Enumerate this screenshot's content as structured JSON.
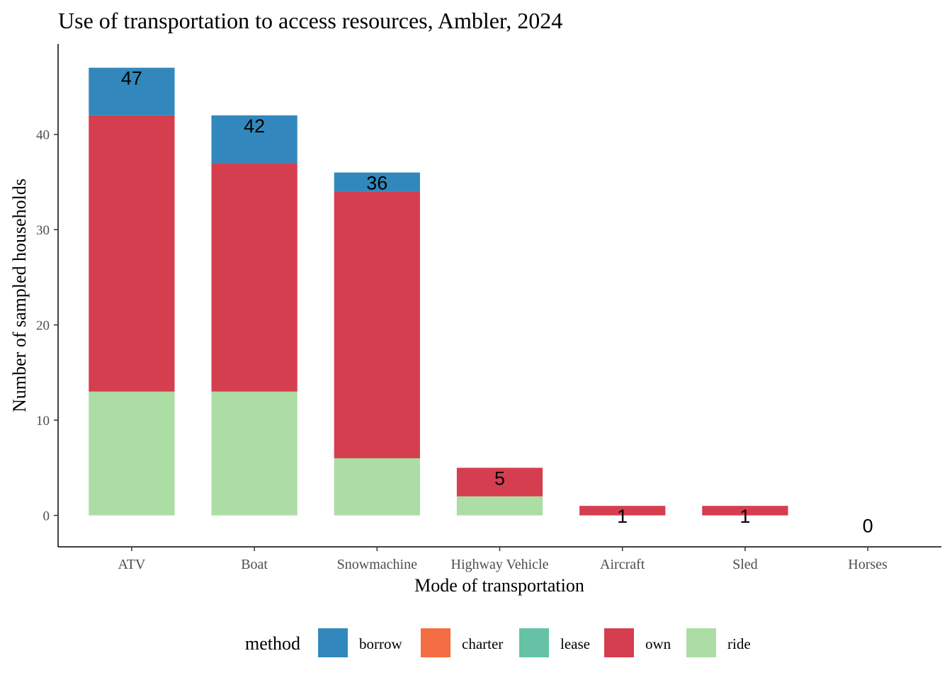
{
  "chart_data": {
    "type": "bar",
    "stacked": true,
    "title": "Use of transportation to access resources, Ambler, 2024",
    "xlabel": "Mode of transportation",
    "ylabel": "Number of sampled households",
    "categories": [
      "ATV",
      "Boat",
      "Snowmachine",
      "Highway Vehicle",
      "Aircraft",
      "Sled",
      "Horses"
    ],
    "series": [
      {
        "name": "borrow",
        "color": "#3288BD",
        "values": [
          5,
          5,
          2,
          0,
          0,
          0,
          0
        ]
      },
      {
        "name": "charter",
        "color": "#F46D43",
        "values": [
          0,
          0,
          0,
          0,
          0,
          0,
          0
        ]
      },
      {
        "name": "lease",
        "color": "#66C2A5",
        "values": [
          0,
          0,
          0,
          0,
          0,
          0,
          0
        ]
      },
      {
        "name": "own",
        "color": "#D53E4F",
        "values": [
          29,
          24,
          28,
          3,
          1,
          1,
          0
        ]
      },
      {
        "name": "ride",
        "color": "#ABDDA4",
        "values": [
          13,
          13,
          6,
          2,
          0,
          0,
          0
        ]
      }
    ],
    "stack_order_bottom_to_top": [
      "ride",
      "lease",
      "charter",
      "own",
      "borrow"
    ],
    "totals": [
      47,
      42,
      36,
      5,
      1,
      1,
      0
    ],
    "total_labels": [
      "47",
      "42",
      "36",
      "5",
      "1",
      "1",
      "0"
    ],
    "yticks": [
      0,
      10,
      20,
      30,
      40
    ],
    "ytick_labels": [
      "0",
      "10",
      "20",
      "30",
      "40"
    ],
    "ylim": [
      -3.3,
      49.5
    ],
    "grid": false,
    "legend": {
      "title": "method",
      "position": "bottom"
    }
  }
}
